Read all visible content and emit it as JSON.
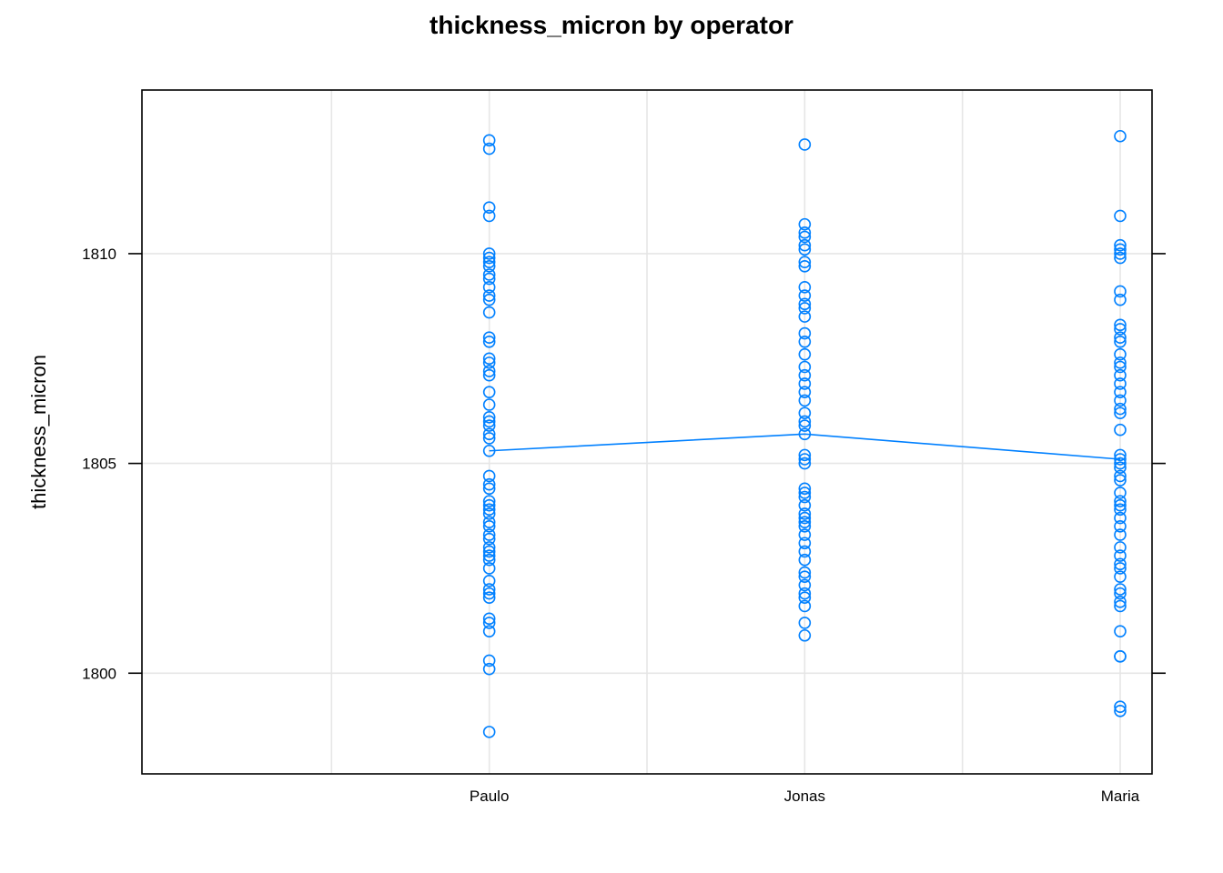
{
  "chart_data": {
    "type": "scatter",
    "title": "thickness_micron by operator",
    "xlabel": "",
    "ylabel": "thickness_micron",
    "categories": [
      "Paulo",
      "Jonas",
      "Maria"
    ],
    "ylim": [
      1797.6,
      1813.9
    ],
    "yticks": [
      1800,
      1805,
      1810
    ],
    "grid": true,
    "color": "#0080ff",
    "series": [
      {
        "category": "Paulo",
        "mean": 1805.3,
        "values": [
          1812.7,
          1812.5,
          1811.1,
          1810.9,
          1810.0,
          1809.9,
          1809.8,
          1809.7,
          1809.5,
          1809.4,
          1809.2,
          1809.0,
          1808.9,
          1808.6,
          1808.0,
          1807.9,
          1807.5,
          1807.4,
          1807.2,
          1807.1,
          1806.7,
          1806.4,
          1806.1,
          1806.0,
          1805.9,
          1805.7,
          1805.6,
          1805.3,
          1804.7,
          1804.5,
          1804.4,
          1804.1,
          1804.0,
          1803.9,
          1803.8,
          1803.6,
          1803.5,
          1803.3,
          1803.2,
          1803.0,
          1802.9,
          1802.8,
          1802.7,
          1802.5,
          1802.2,
          1802.0,
          1801.9,
          1801.8,
          1801.3,
          1801.2,
          1801.0,
          1800.3,
          1800.1,
          1798.6
        ]
      },
      {
        "category": "Jonas",
        "mean": 1805.7,
        "values": [
          1812.6,
          1810.7,
          1810.5,
          1810.4,
          1810.2,
          1810.1,
          1809.8,
          1809.7,
          1809.2,
          1809.0,
          1808.8,
          1808.7,
          1808.5,
          1808.1,
          1807.9,
          1807.6,
          1807.3,
          1807.1,
          1806.9,
          1806.7,
          1806.5,
          1806.2,
          1806.0,
          1805.9,
          1805.7,
          1805.2,
          1805.1,
          1805.0,
          1804.4,
          1804.3,
          1804.2,
          1804.0,
          1803.8,
          1803.7,
          1803.6,
          1803.5,
          1803.3,
          1803.1,
          1802.9,
          1802.7,
          1802.4,
          1802.3,
          1802.1,
          1801.9,
          1801.8,
          1801.6,
          1801.2,
          1800.9
        ]
      },
      {
        "category": "Maria",
        "mean": 1805.1,
        "values": [
          1812.8,
          1810.9,
          1810.2,
          1810.1,
          1810.0,
          1809.9,
          1809.1,
          1808.9,
          1808.3,
          1808.2,
          1808.0,
          1807.9,
          1807.6,
          1807.4,
          1807.3,
          1807.1,
          1806.9,
          1806.7,
          1806.5,
          1806.3,
          1806.2,
          1805.8,
          1805.2,
          1805.1,
          1805.0,
          1804.9,
          1804.7,
          1804.6,
          1804.3,
          1804.1,
          1804.0,
          1803.9,
          1803.7,
          1803.5,
          1803.3,
          1803.0,
          1802.8,
          1802.6,
          1802.5,
          1802.3,
          1802.0,
          1801.9,
          1801.7,
          1801.6,
          1801.0,
          1800.4,
          1800.4,
          1799.2,
          1799.1
        ]
      }
    ]
  }
}
